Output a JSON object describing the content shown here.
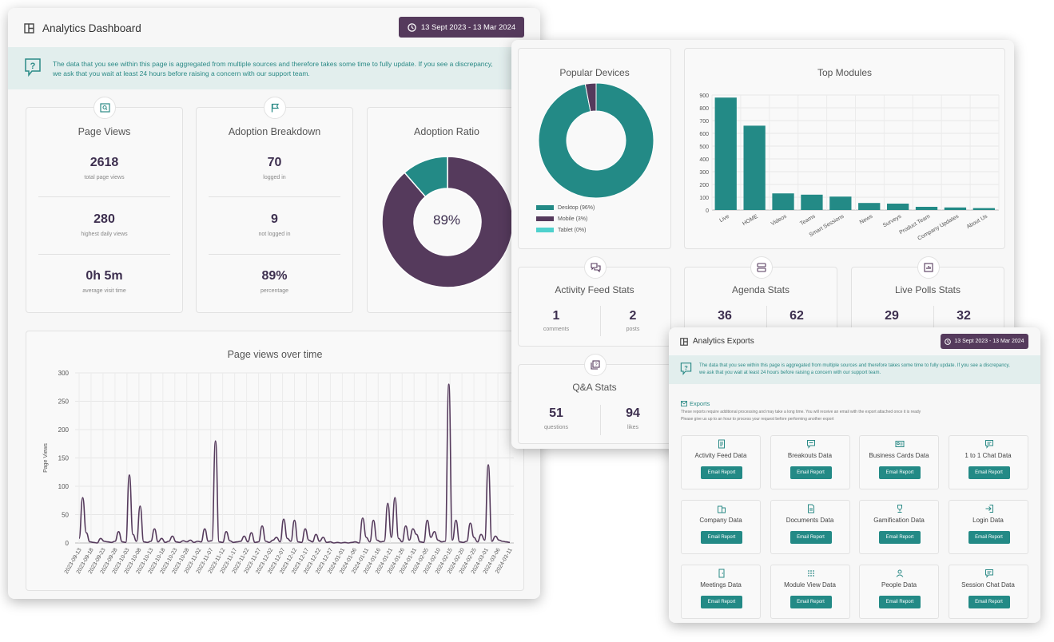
{
  "dashboard": {
    "title": "Analytics Dashboard",
    "date_range": "13 Sept 2023 - 13 Mar 2024",
    "notice_line1": "The data that you see within this page is aggregated from multiple sources and therefore takes some time to fully update. If you see a discrepancy,",
    "notice_line2": "we ask that you wait at least 24 hours before raising a concern with our support team.",
    "page_views": {
      "title": "Page Views",
      "stats": [
        {
          "value": "2618",
          "label": "total page views"
        },
        {
          "value": "280",
          "label": "highest daily views"
        },
        {
          "value": "0h 5m",
          "label": "average visit time"
        }
      ]
    },
    "adoption_breakdown": {
      "title": "Adoption Breakdown",
      "stats": [
        {
          "value": "70",
          "label": "logged in"
        },
        {
          "value": "9",
          "label": "not logged in"
        },
        {
          "value": "89%",
          "label": "percentage"
        }
      ]
    },
    "adoption_ratio": {
      "title": "Adoption Ratio",
      "center_label": "89%",
      "logged_in_fraction": 0.886,
      "colors": {
        "logged_in": "#553a5c",
        "not_logged_in": "#238a86"
      }
    },
    "line_chart_title": "Page views over time"
  },
  "insights": {
    "popular_devices": {
      "title": "Popular Devices",
      "legend": [
        {
          "label": "Desktop (96%)",
          "color": "#238a86",
          "value": 96
        },
        {
          "label": "Mobile (3%)",
          "color": "#553a5c",
          "value": 3
        },
        {
          "label": "Tablet (0%)",
          "color": "#4fd1cd",
          "value": 0
        }
      ]
    },
    "top_modules_title": "Top Modules",
    "activity_feed": {
      "title": "Activity Feed Stats",
      "stats": [
        {
          "value": "1",
          "label": "comments"
        },
        {
          "value": "2",
          "label": "posts"
        }
      ]
    },
    "agenda": {
      "title": "Agenda Stats",
      "stats": [
        {
          "value": "36",
          "label": ""
        },
        {
          "value": "62",
          "label": ""
        }
      ]
    },
    "live_polls": {
      "title": "Live Polls Stats",
      "stats": [
        {
          "value": "29",
          "label": ""
        },
        {
          "value": "32",
          "label": ""
        }
      ]
    },
    "qa": {
      "title": "Q&A Stats",
      "stats": [
        {
          "value": "51",
          "label": "questions"
        },
        {
          "value": "94",
          "label": "likes"
        }
      ]
    }
  },
  "exports": {
    "title": "Analytics Exports",
    "date_range": "13 Sept 2023 - 13 Mar 2024",
    "notice_line1": "The data that you see within this page is aggregated from multiple sources and therefore takes some time to fully update. If you see a discrepancy,",
    "notice_line2": "we ask that you wait at least 24 hours before raising a concern with our support team.",
    "section_title": "Exports",
    "desc_line1": "These reports require additional processing and may take a long time. You will receive an email with the export attached once it is ready",
    "desc_line2": "Please give us up to an hour to process your request before performing another export",
    "button_label": "Email Report",
    "items": [
      {
        "label": "Activity Feed Data",
        "icon": "document-icon"
      },
      {
        "label": "Breakouts Data",
        "icon": "chat-bubble-icon"
      },
      {
        "label": "Business Cards Data",
        "icon": "id-card-icon"
      },
      {
        "label": "1 to 1 Chat Data",
        "icon": "message-icon"
      },
      {
        "label": "Company Data",
        "icon": "building-icon"
      },
      {
        "label": "Documents Data",
        "icon": "file-icon"
      },
      {
        "label": "Gamification Data",
        "icon": "trophy-icon"
      },
      {
        "label": "Login Data",
        "icon": "login-icon"
      },
      {
        "label": "Meetings Data",
        "icon": "door-icon"
      },
      {
        "label": "Module View Data",
        "icon": "grid-icon"
      },
      {
        "label": "People Data",
        "icon": "people-icon"
      },
      {
        "label": "Session Chat Data",
        "icon": "message-icon"
      }
    ]
  },
  "chart_data": [
    {
      "type": "line",
      "title": "Page views over time",
      "ylabel": "Page Views",
      "ylim": [
        0,
        300
      ],
      "yticks": [
        0,
        50,
        100,
        150,
        200,
        250,
        300
      ],
      "x_ticks": [
        "2023-09-13",
        "2023-09-18",
        "2023-09-23",
        "2023-09-28",
        "2023-10-03",
        "2023-10-08",
        "2023-10-13",
        "2023-10-18",
        "2023-10-23",
        "2023-10-28",
        "2023-11-02",
        "2023-11-07",
        "2023-11-12",
        "2023-11-17",
        "2023-11-22",
        "2023-11-27",
        "2023-12-02",
        "2023-12-07",
        "2023-12-12",
        "2023-12-17",
        "2023-12-22",
        "2023-12-27",
        "2024-01-01",
        "2024-01-06",
        "2024-01-11",
        "2024-01-16",
        "2024-01-21",
        "2024-01-26",
        "2024-01-31",
        "2024-02-05",
        "2024-02-10",
        "2024-02-15",
        "2024-02-20",
        "2024-02-25",
        "2024-03-01",
        "2024-03-06",
        "2024-03-11"
      ],
      "series": [
        {
          "color": "#553a5c",
          "values": [
            8,
            80,
            18,
            2,
            1,
            0,
            8,
            3,
            2,
            1,
            3,
            20,
            2,
            1,
            120,
            15,
            3,
            65,
            2,
            1,
            3,
            25,
            2,
            8,
            1,
            3,
            12,
            2,
            1,
            4,
            2,
            5,
            1,
            3,
            2,
            25,
            3,
            4,
            180,
            2,
            1,
            20,
            4,
            1,
            2,
            3,
            12,
            2,
            18,
            1,
            2,
            30,
            3,
            1,
            5,
            10,
            2,
            42,
            8,
            3,
            40,
            2,
            1,
            25,
            5,
            2,
            15,
            3,
            10,
            1,
            2,
            0,
            1,
            0,
            1,
            0,
            1,
            2,
            0,
            44,
            10,
            2,
            40,
            5,
            2,
            3,
            70,
            10,
            80,
            8,
            2,
            30,
            5,
            25,
            15,
            2,
            1,
            40,
            10,
            20,
            5,
            2,
            3,
            280,
            5,
            40,
            2,
            1,
            3,
            35,
            10,
            2,
            15,
            5,
            138,
            3,
            12,
            5,
            3,
            2,
            1
          ]
        }
      ]
    },
    {
      "type": "pie",
      "title": "Adoption Ratio",
      "categories": [
        "logged in",
        "not logged in"
      ],
      "values": [
        70,
        9
      ]
    },
    {
      "type": "pie",
      "title": "Popular Devices",
      "categories": [
        "Desktop (96%)",
        "Mobile (3%)",
        "Tablet (0%)"
      ],
      "values": [
        96,
        3,
        0
      ]
    },
    {
      "type": "bar",
      "title": "Top Modules",
      "categories": [
        "Live",
        "HOME",
        "Videos",
        "Teams",
        "Smart Sessions",
        "News",
        "Surveys",
        "Product Team",
        "Company Updates",
        "About Us"
      ],
      "values": [
        880,
        660,
        130,
        120,
        105,
        55,
        50,
        25,
        20,
        15
      ],
      "ylim": [
        0,
        900
      ],
      "yticks": [
        0,
        100,
        200,
        300,
        400,
        500,
        600,
        700,
        800,
        900
      ],
      "color": "#238a86"
    }
  ]
}
